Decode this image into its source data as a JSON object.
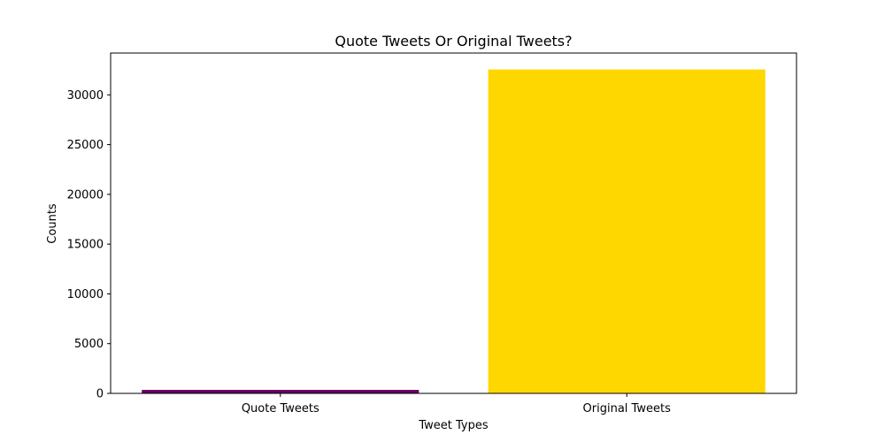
{
  "chart_data": {
    "type": "bar",
    "title": "Quote Tweets Or Original Tweets?",
    "xlabel": "Tweet Types",
    "ylabel": "Counts",
    "categories": [
      "Quote Tweets",
      "Original Tweets"
    ],
    "values": [
      350,
      32550
    ],
    "colors": [
      "#660066",
      "#ffd700"
    ],
    "ylim": [
      0,
      34200
    ],
    "yticks": [
      0,
      5000,
      10000,
      15000,
      20000,
      25000,
      30000
    ],
    "grid": false,
    "legend": "none"
  }
}
